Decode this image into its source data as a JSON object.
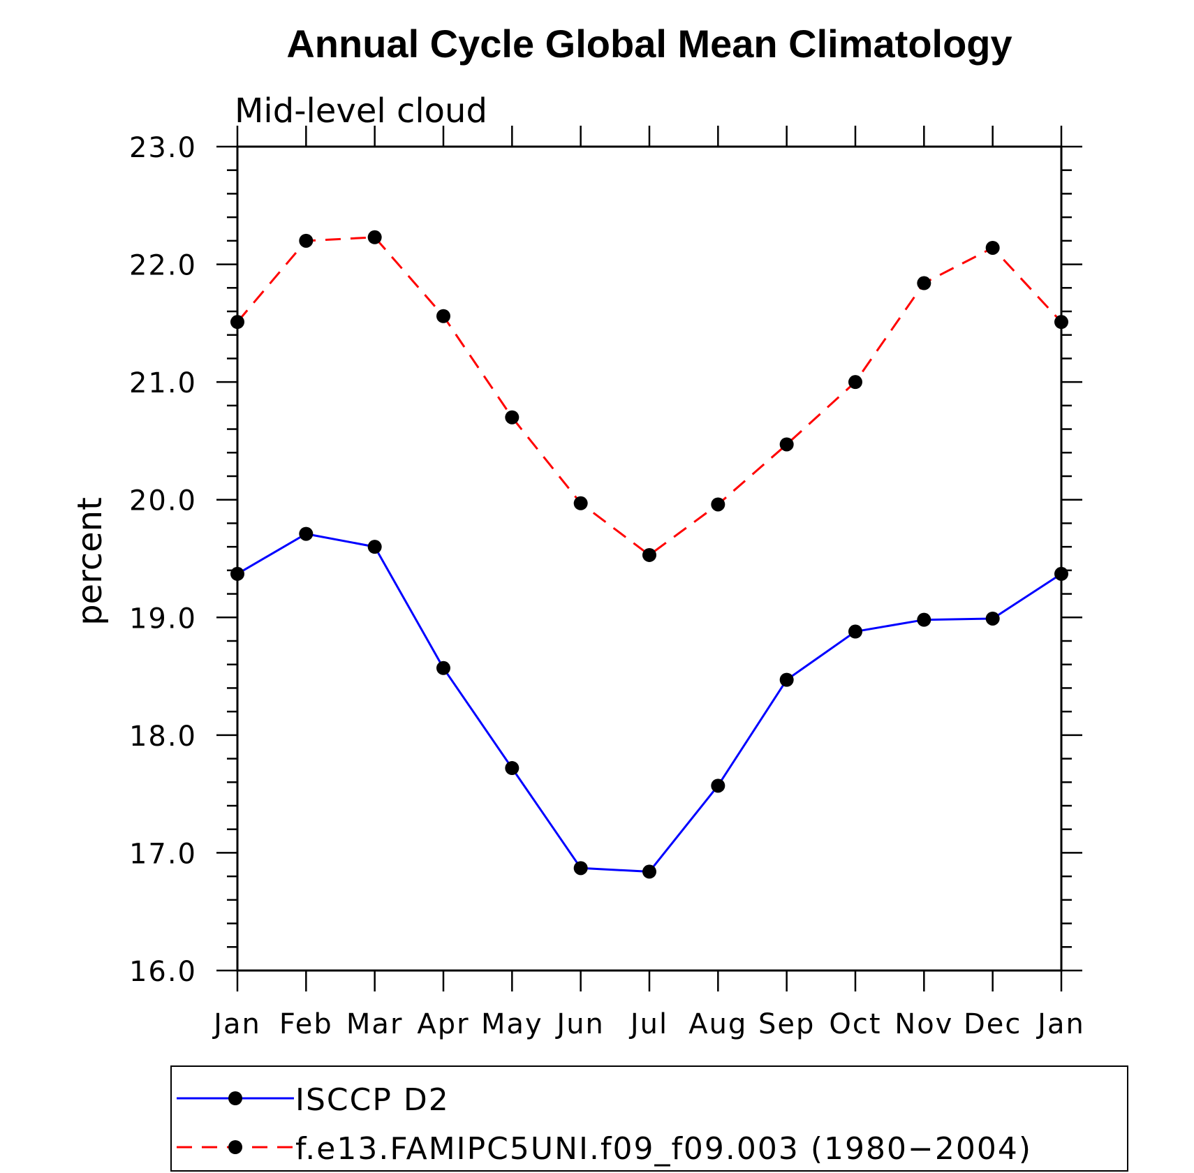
{
  "chart_data": {
    "type": "line",
    "title": "Annual Cycle Global Mean Climatology",
    "subtitle": "Mid-level cloud",
    "xlabel": "",
    "ylabel": "percent",
    "categories": [
      "Jan",
      "Feb",
      "Mar",
      "Apr",
      "May",
      "Jun",
      "Jul",
      "Aug",
      "Sep",
      "Oct",
      "Nov",
      "Dec",
      "Jan"
    ],
    "ylim": [
      16.0,
      23.0
    ],
    "yticks": [
      "16.0",
      "17.0",
      "18.0",
      "19.0",
      "20.0",
      "21.0",
      "22.0",
      "23.0"
    ],
    "grid": false,
    "legend_position": "bottom",
    "series": [
      {
        "name": "ISCCP D2",
        "color": "#0000ff",
        "dash": "solid",
        "values": [
          19.37,
          19.71,
          19.6,
          18.57,
          17.72,
          16.87,
          16.84,
          17.57,
          18.47,
          18.88,
          18.98,
          18.99,
          19.37
        ]
      },
      {
        "name": "f.e13.FAMIPC5UNI.f09_f09.003 (1980−2004)",
        "color": "#ff0000",
        "dash": "dashed",
        "values": [
          21.51,
          22.2,
          22.23,
          21.56,
          20.7,
          19.97,
          19.53,
          19.96,
          20.47,
          21.0,
          21.84,
          22.14,
          21.51
        ]
      }
    ]
  }
}
